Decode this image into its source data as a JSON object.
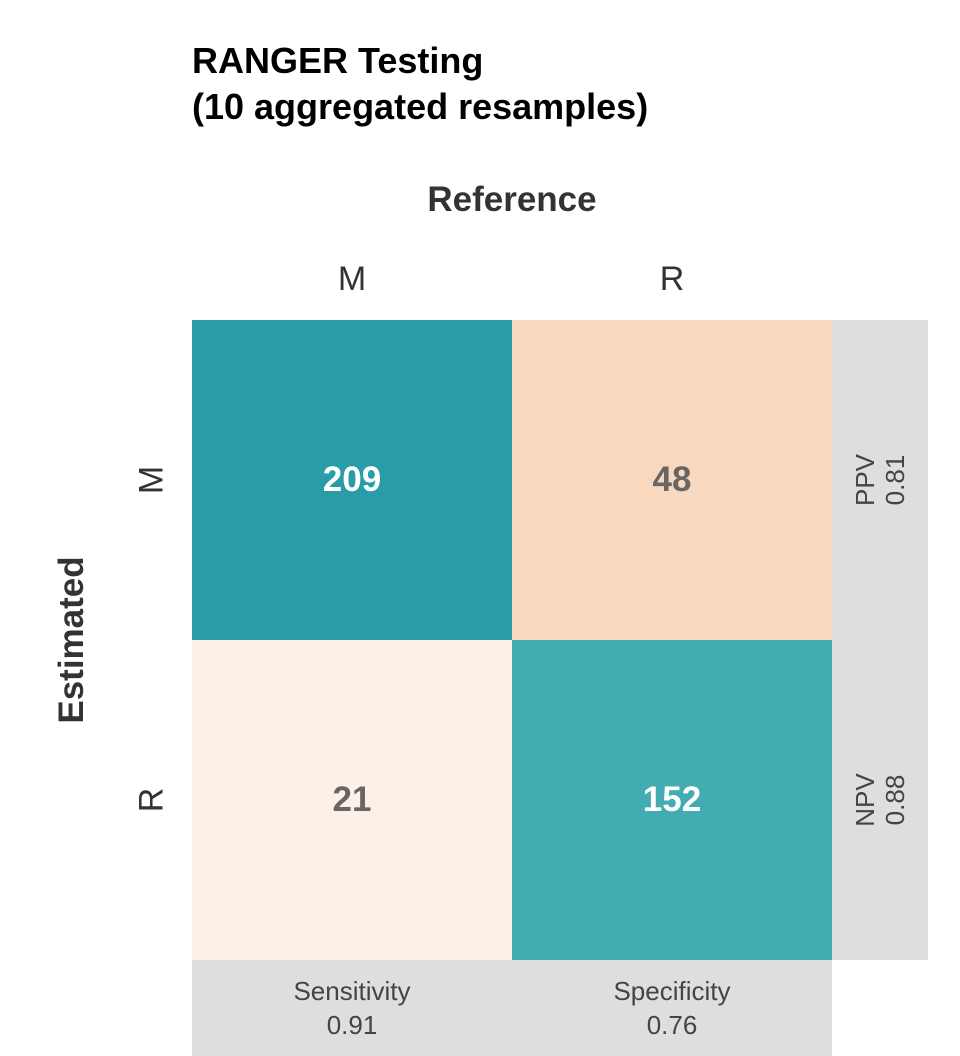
{
  "title_lines": [
    "RANGER Testing",
    "(10 aggregated resamples)"
  ],
  "colors": {
    "high_tp": "#2a9ca7",
    "high_tn": "#43acb3",
    "low_fp": "#f8d9c0",
    "low_fn": "#fdf0e9",
    "panel": "#dedede",
    "label_dark": "#666666",
    "label_light": "#ffffff"
  },
  "chart_data": {
    "type": "heatmap",
    "title": "RANGER Testing\n(10 aggregated resamples)",
    "xlabel": "Reference",
    "ylabel": "Estimated",
    "x_categories": [
      "M",
      "R"
    ],
    "y_categories": [
      "M",
      "R"
    ],
    "matrix": [
      [
        209,
        48
      ],
      [
        21,
        152
      ]
    ],
    "row_metrics": [
      {
        "name": "PPV",
        "value": "0.81"
      },
      {
        "name": "NPV",
        "value": "0.88"
      }
    ],
    "col_metrics": [
      {
        "name": "Sensitivity",
        "value": "0.91"
      },
      {
        "name": "Specificity",
        "value": "0.76"
      }
    ]
  }
}
